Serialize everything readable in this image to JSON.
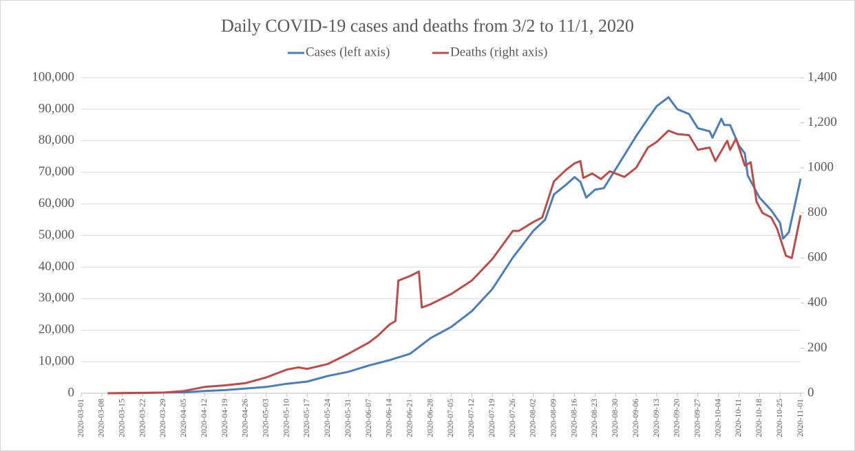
{
  "chart_data": {
    "type": "line",
    "title": "Daily COVID-19 cases and deaths from 3/2 to 11/1, 2020",
    "xlim": [
      "2020-03-01",
      "2020-11-01"
    ],
    "xticks": [
      "2020-03-01",
      "2020-03-08",
      "2020-03-15",
      "2020-03-22",
      "2020-03-29",
      "2020-04-05",
      "2020-04-12",
      "2020-04-19",
      "2020-04-26",
      "2020-05-03",
      "2020-05-10",
      "2020-05-17",
      "2020-05-24",
      "2020-05-31",
      "2020-06-07",
      "2020-06-14",
      "2020-06-21",
      "2020-06-28",
      "2020-07-05",
      "2020-07-12",
      "2020-07-19",
      "2020-07-26",
      "2020-08-02",
      "2020-08-09",
      "2020-08-16",
      "2020-08-23",
      "2020-08-30",
      "2020-09-06",
      "2020-09-13",
      "2020-09-20",
      "2020-09-27",
      "2020-10-04",
      "2020-10-11",
      "2020-10-18",
      "2020-10-25",
      "2020-11-01"
    ],
    "ylim": [
      0,
      100000
    ],
    "yticks": [
      {
        "value": 0,
        "label": "0"
      },
      {
        "value": 10000,
        "label": "10,000"
      },
      {
        "value": 20000,
        "label": "20,000"
      },
      {
        "value": 30000,
        "label": "30,000"
      },
      {
        "value": 40000,
        "label": "40,000"
      },
      {
        "value": 50000,
        "label": "50,000"
      },
      {
        "value": 60000,
        "label": "60,000"
      },
      {
        "value": 70000,
        "label": "70,000"
      },
      {
        "value": 80000,
        "label": "80,000"
      },
      {
        "value": 90000,
        "label": "90,000"
      },
      {
        "value": 100000,
        "label": "100,000"
      }
    ],
    "y2lim": [
      0,
      1400
    ],
    "y2ticks": [
      0,
      200,
      400,
      600,
      800,
      1000,
      {
        "value": 1200,
        "label": "1,200"
      },
      {
        "value": 1400,
        "label": "1,400"
      }
    ],
    "grid": true,
    "legend": "top",
    "series": [
      {
        "name": "Cases (left axis)",
        "color": "#4a7ebb",
        "x": [
          "2020-03-10",
          "2020-03-22",
          "2020-04-05",
          "2020-04-12",
          "2020-04-19",
          "2020-04-26",
          "2020-05-03",
          "2020-05-10",
          "2020-05-17",
          "2020-05-24",
          "2020-05-31",
          "2020-06-07",
          "2020-06-14",
          "2020-06-21",
          "2020-06-28",
          "2020-07-05",
          "2020-07-12",
          "2020-07-19",
          "2020-07-26",
          "2020-08-02",
          "2020-08-06",
          "2020-08-09",
          "2020-08-13",
          "2020-08-16",
          "2020-08-18",
          "2020-08-20",
          "2020-08-23",
          "2020-08-26",
          "2020-08-30",
          "2020-09-06",
          "2020-09-10",
          "2020-09-13",
          "2020-09-17",
          "2020-09-20",
          "2020-09-24",
          "2020-09-27",
          "2020-10-01",
          "2020-10-02",
          "2020-10-05",
          "2020-10-06",
          "2020-10-08",
          "2020-10-11",
          "2020-10-13",
          "2020-10-14",
          "2020-10-18",
          "2020-10-22",
          "2020-10-25",
          "2020-10-26",
          "2020-10-28",
          "2020-11-01"
        ],
        "values": [
          0,
          100,
          300,
          700,
          1000,
          1500,
          2000,
          3000,
          3700,
          5500,
          6800,
          8800,
          10500,
          12500,
          17500,
          21000,
          26000,
          33000,
          43000,
          51500,
          55000,
          63000,
          66000,
          68500,
          67000,
          62000,
          64500,
          65000,
          71000,
          81500,
          87000,
          91000,
          93800,
          90000,
          88500,
          84000,
          83000,
          81000,
          87000,
          85000,
          85000,
          78500,
          76000,
          69000,
          62000,
          58000,
          54000,
          49000,
          51000,
          68000
        ]
      },
      {
        "name": "Deaths (right axis)",
        "color": "#be4b48",
        "axis": "y2",
        "x": [
          "2020-03-10",
          "2020-03-29",
          "2020-04-05",
          "2020-04-12",
          "2020-04-19",
          "2020-04-26",
          "2020-05-03",
          "2020-05-10",
          "2020-05-14",
          "2020-05-17",
          "2020-05-24",
          "2020-05-31",
          "2020-06-07",
          "2020-06-10",
          "2020-06-14",
          "2020-06-16",
          "2020-06-17",
          "2020-06-21",
          "2020-06-24",
          "2020-06-25",
          "2020-06-28",
          "2020-07-05",
          "2020-07-12",
          "2020-07-19",
          "2020-07-26",
          "2020-07-28",
          "2020-08-02",
          "2020-08-05",
          "2020-08-09",
          "2020-08-13",
          "2020-08-16",
          "2020-08-18",
          "2020-08-19",
          "2020-08-22",
          "2020-08-25",
          "2020-08-28",
          "2020-09-02",
          "2020-09-06",
          "2020-09-10",
          "2020-09-13",
          "2020-09-17",
          "2020-09-20",
          "2020-09-24",
          "2020-09-27",
          "2020-10-01",
          "2020-10-03",
          "2020-10-07",
          "2020-10-08",
          "2020-10-10",
          "2020-10-13",
          "2020-10-15",
          "2020-10-17",
          "2020-10-19",
          "2020-10-22",
          "2020-10-24",
          "2020-10-27",
          "2020-10-29",
          "2020-11-01"
        ],
        "values": [
          0,
          3,
          10,
          28,
          35,
          45,
          70,
          105,
          115,
          108,
          130,
          175,
          225,
          255,
          305,
          320,
          500,
          520,
          540,
          380,
          395,
          440,
          500,
          595,
          720,
          720,
          760,
          780,
          940,
          990,
          1020,
          1030,
          955,
          975,
          950,
          985,
          960,
          1000,
          1090,
          1115,
          1165,
          1150,
          1145,
          1080,
          1090,
          1030,
          1120,
          1080,
          1130,
          1010,
          1025,
          850,
          800,
          780,
          730,
          610,
          600,
          790
        ]
      }
    ]
  }
}
